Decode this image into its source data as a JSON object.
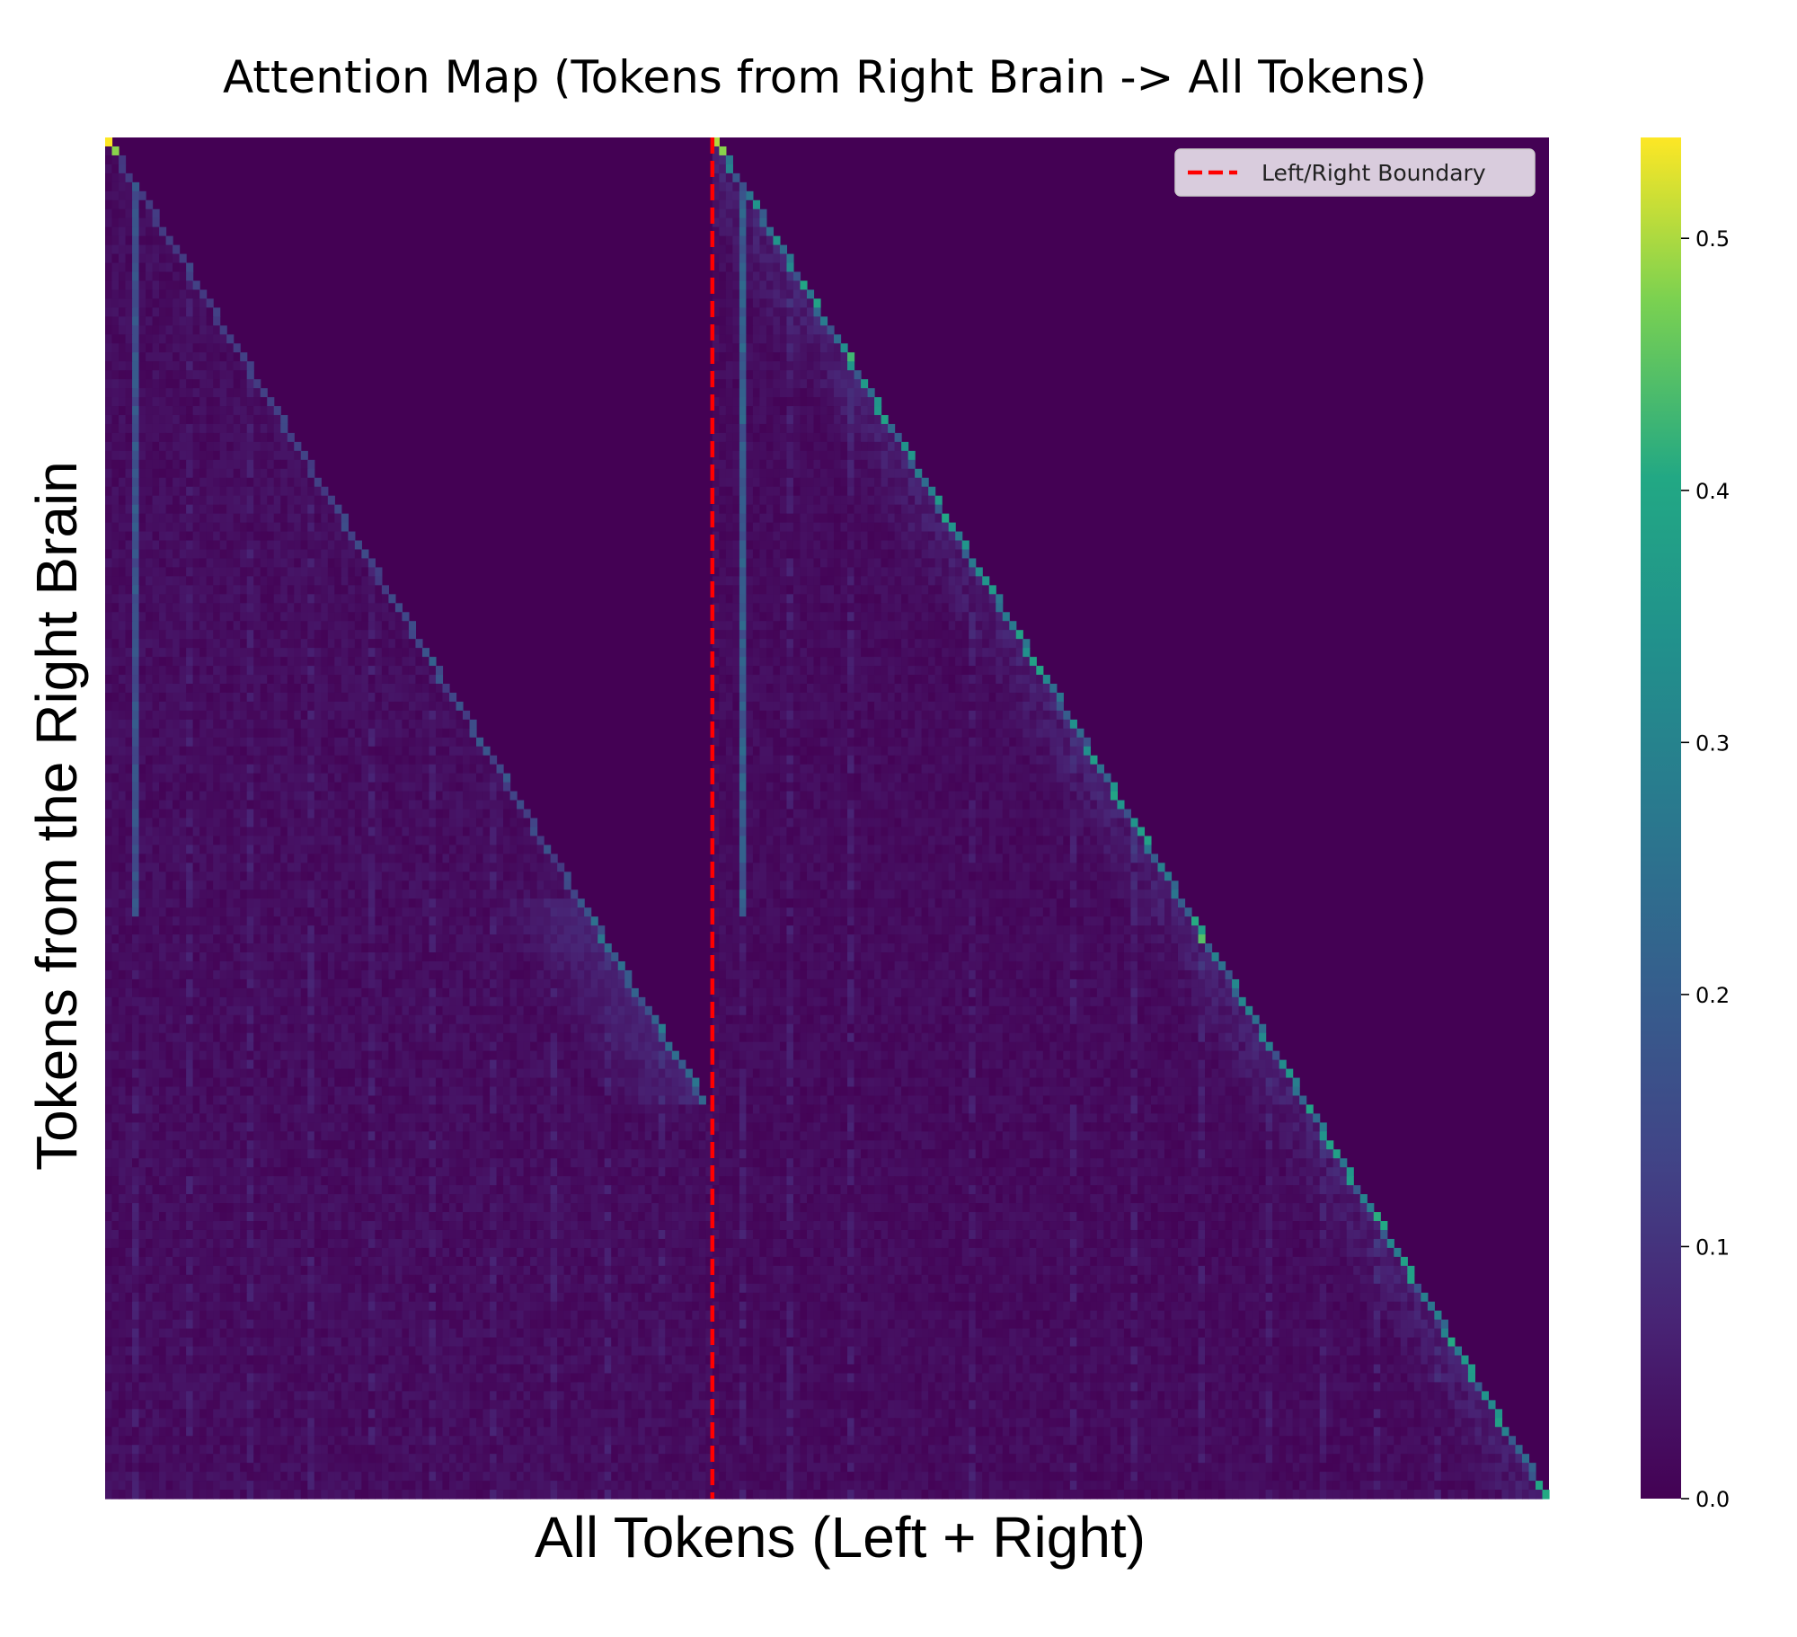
{
  "chart_data": {
    "type": "heatmap",
    "title": "Attention Map (Tokens from Right Brain -> All Tokens)",
    "xlabel": "All Tokens (Left + Right)",
    "ylabel": "Tokens from the Right Brain",
    "colormap": "viridis",
    "value_range": [
      0.0,
      0.54
    ],
    "colorbar_ticks": [
      0.0,
      0.1,
      0.2,
      0.3,
      0.4,
      0.5
    ],
    "grid": false,
    "legend": {
      "entries": [
        "Left/Right Boundary"
      ],
      "placement": "top-right"
    },
    "boundary_line": {
      "label": "Left/Right Boundary",
      "color": "#ff0000",
      "style": "dashed"
    },
    "matrix_shape": {
      "rows": 152,
      "cols": 214,
      "left_cols": 90
    },
    "pattern": {
      "row0_values": [
        0.54,
        0.5
      ],
      "left_diagonal_end_row": 108,
      "left_diagonal_peak": 0.22,
      "right_diagonal_peak": 0.35,
      "sink_columns": [
        {
          "col": 4,
          "value": 0.18,
          "rows": [
            5,
            86
          ]
        },
        {
          "col": 94,
          "value": 0.22,
          "rows": [
            5,
            86
          ]
        }
      ]
    }
  }
}
